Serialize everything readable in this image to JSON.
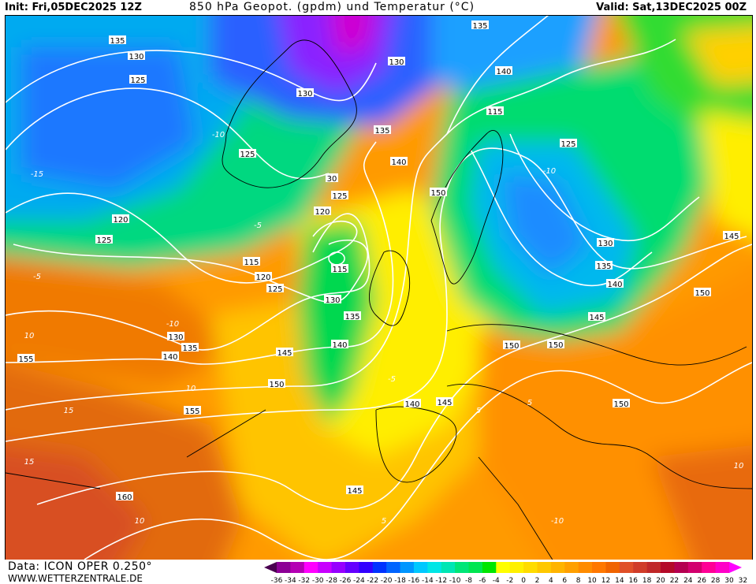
{
  "header": {
    "init": "Init: Fri,05DEC2025 12Z",
    "title": "850 hPa Geopot. (gpdm) und Temperatur (°C)",
    "valid": "Valid: Sat,13DEC2025 00Z"
  },
  "footer": {
    "source": "Data: ICON OPER 0.250°",
    "website": "WWW.WETTERZENTRALE.DE"
  },
  "legend": {
    "ticks": [
      "-36",
      "-34",
      "-32",
      "-30",
      "-28",
      "-26",
      "-24",
      "-22",
      "-20",
      "-18",
      "-16",
      "-14",
      "-12",
      "-10",
      "-8",
      "-6",
      "-4",
      "-2",
      "0",
      "2",
      "4",
      "6",
      "8",
      "10",
      "12",
      "14",
      "16",
      "18",
      "20",
      "22",
      "24",
      "26",
      "28",
      "30",
      "32"
    ],
    "colors": [
      "#4a0050",
      "#8c0096",
      "#b400b4",
      "#ff00ff",
      "#c800ff",
      "#9600ff",
      "#6400ff",
      "#3200ff",
      "#0032ff",
      "#0064ff",
      "#0096ff",
      "#00c8ff",
      "#00e6e6",
      "#00e6b4",
      "#00e678",
      "#00e650",
      "#00e600",
      "#ffff00",
      "#fff000",
      "#ffdc00",
      "#ffc800",
      "#ffb400",
      "#ffa000",
      "#ff8c00",
      "#ff7800",
      "#f06400",
      "#e05028",
      "#d03c28",
      "#c02828",
      "#b40a28",
      "#b40050",
      "#d2006e",
      "#ff0096",
      "#ff00c8",
      "#ff00ff"
    ]
  },
  "map": {
    "contour_labels": [
      "135",
      "130",
      "125",
      "130",
      "130",
      "135",
      "140",
      "115",
      "135",
      "125",
      "140",
      "125",
      "30",
      "125",
      "120",
      "150",
      "120",
      "125",
      "115",
      "120",
      "125",
      "115",
      "130",
      "135",
      "140",
      "130",
      "135",
      "140",
      "145",
      "150",
      "155",
      "155",
      "160",
      "145",
      "140",
      "145",
      "150",
      "150",
      "150",
      "145",
      "140",
      "135",
      "130",
      "145",
      "150",
      "-10",
      "-10",
      "-5",
      "-5",
      "-15",
      "-10",
      "-5",
      "5",
      "10",
      "-10",
      "10",
      "15",
      "15",
      "10",
      "10",
      "5",
      "5"
    ]
  }
}
